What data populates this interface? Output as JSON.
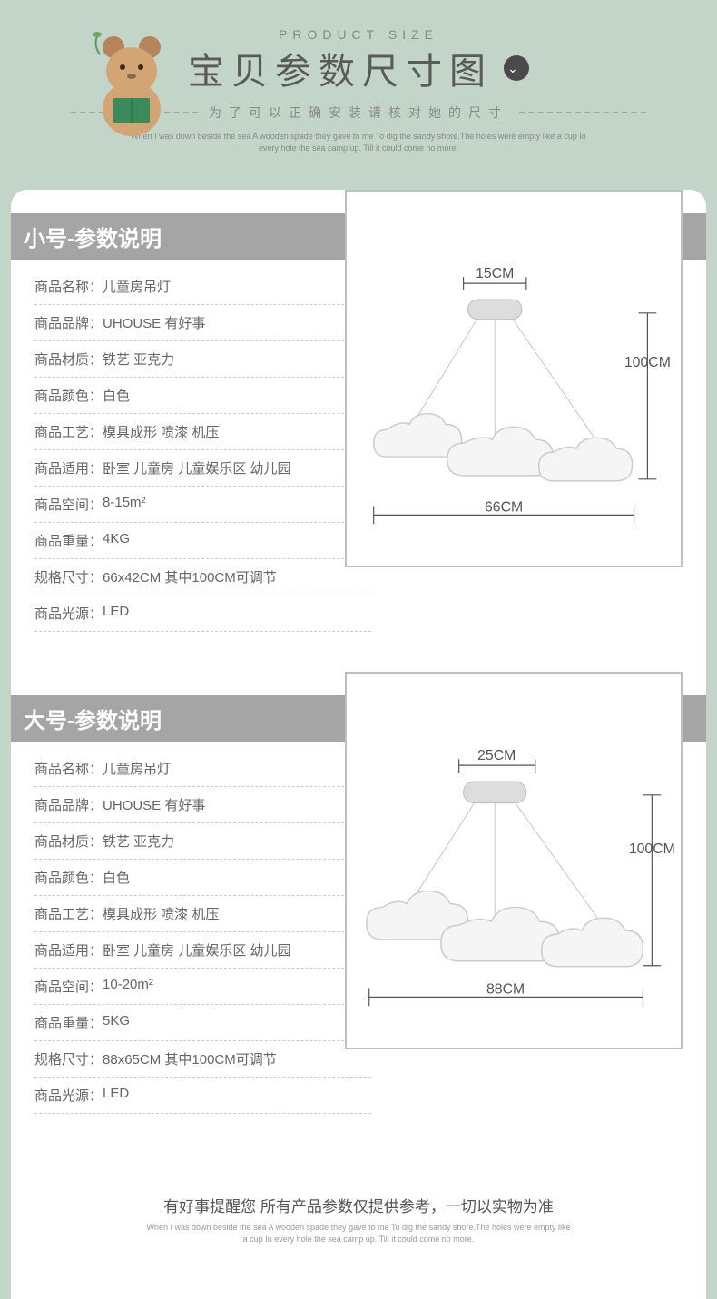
{
  "header": {
    "small_label": "PRODUCT SIZE",
    "title": "宝贝参数尺寸图",
    "subtitle": "为了可以正确安装请核对她的尺寸",
    "fine": "When I was down beside the sea A wooden spade they gave to me To dig the sandy shore.The holes were empty like a cup In every hole the sea camp up. Till it could come no more."
  },
  "colors": {
    "page_bg": "#c3d4c8",
    "card_bg": "#ffffff",
    "head_bar": "#a5a5a5",
    "text": "#555555",
    "dash": "#cccccc"
  },
  "sections": [
    {
      "title": "小号-参数说明",
      "rows": [
        {
          "label": "商品名称：",
          "value": "儿童房吊灯"
        },
        {
          "label": "商品品牌：",
          "value": "UHOUSE 有好事"
        },
        {
          "label": "商品材质：",
          "value": "铁艺 亚克力"
        },
        {
          "label": "商品颜色：",
          "value": "白色"
        },
        {
          "label": "商品工艺：",
          "value": "模具成形  喷漆 机压"
        },
        {
          "label": "商品适用：",
          "value": "卧室 儿童房 儿童娱乐区 幼儿园"
        },
        {
          "label": "商品空间：",
          "value": "8-15m²"
        },
        {
          "label": "商品重量：",
          "value": "4KG"
        },
        {
          "label": "规格尺寸：",
          "value": "66x42CM   其中100CM可调节"
        },
        {
          "label": "商品光源：",
          "value": "LED"
        }
      ],
      "diagram": {
        "top": "15CM",
        "height": "100CM",
        "width": "66CM"
      }
    },
    {
      "title": "大号-参数说明",
      "rows": [
        {
          "label": "商品名称：",
          "value": "儿童房吊灯"
        },
        {
          "label": "商品品牌：",
          "value": "UHOUSE 有好事"
        },
        {
          "label": "商品材质：",
          "value": "铁艺 亚克力"
        },
        {
          "label": "商品颜色：",
          "value": "白色"
        },
        {
          "label": "商品工艺：",
          "value": "模具成形  喷漆 机压"
        },
        {
          "label": "商品适用：",
          "value": "卧室 儿童房 儿童娱乐区 幼儿园"
        },
        {
          "label": "商品空间：",
          "value": "10-20m²"
        },
        {
          "label": "商品重量：",
          "value": "5KG"
        },
        {
          "label": "规格尺寸：",
          "value": "88x65CM   其中100CM可调节"
        },
        {
          "label": "商品光源：",
          "value": "LED"
        }
      ],
      "diagram": {
        "top": "25CM",
        "height": "100CM",
        "width": "88CM"
      }
    }
  ],
  "footer": {
    "note": "有好事提醒您  所有产品参数仅提供参考，一切以实物为准",
    "fine": "When I was down beside the sea A wooden spade they gave to me To dig the sandy shore.The holes were empty like a cup In every hole the sea camp up. Till it could come no more."
  }
}
